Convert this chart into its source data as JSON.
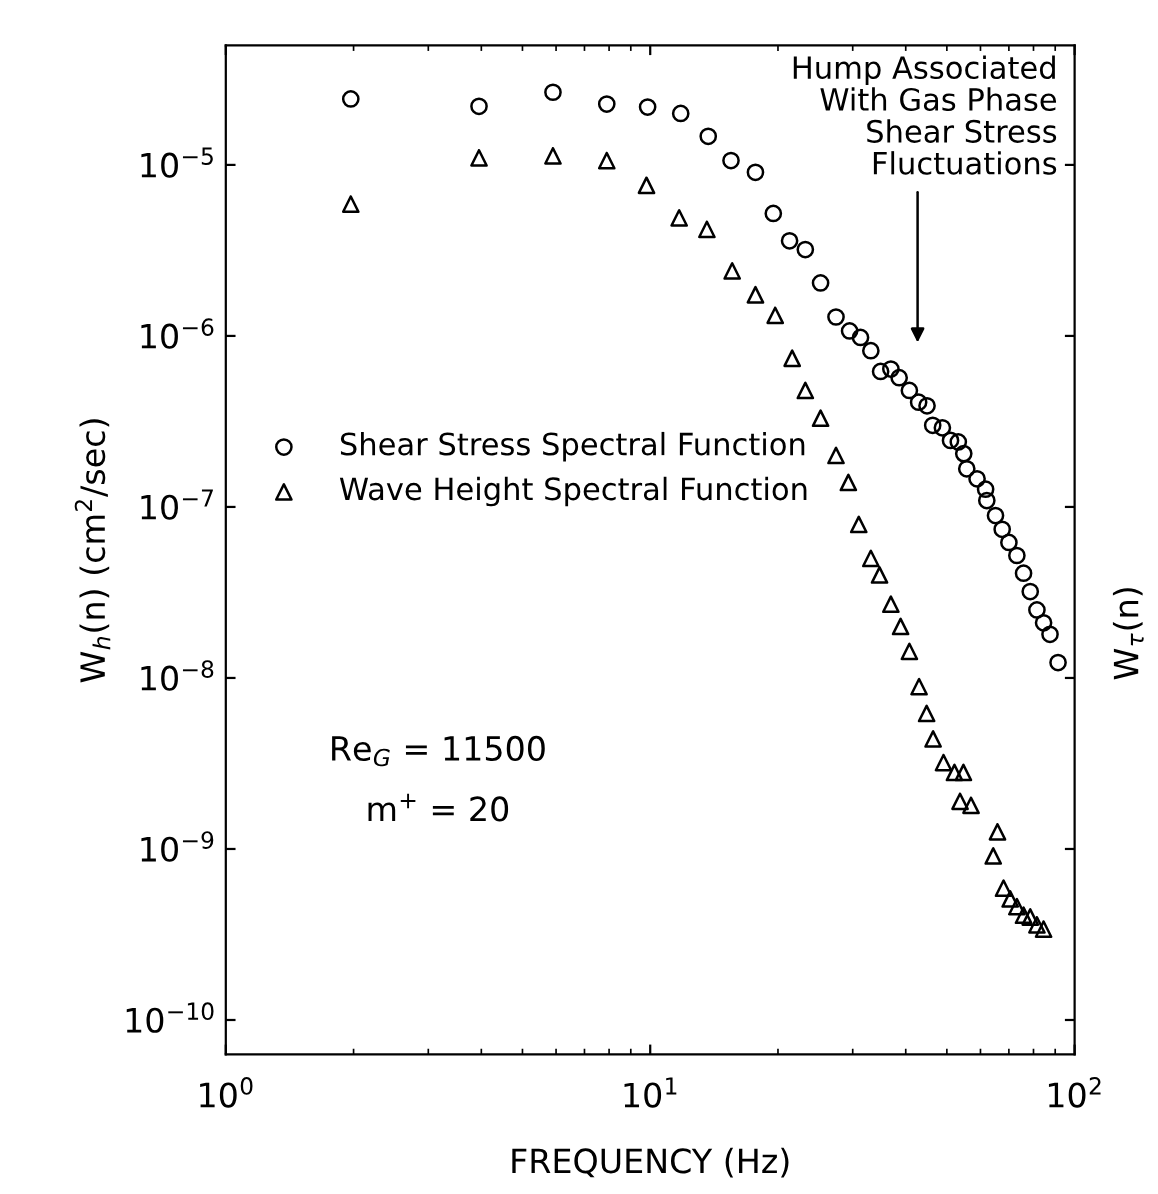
{
  "chart_data": {
    "type": "scatter",
    "xlabel": "FREQUENCY (Hz)",
    "ylabel": "W$_{h}$(n) (cm$^{2}$/sec)",
    "y2label": "W$_{τ}$(n)",
    "log": "xy",
    "xlim": [
      1,
      100
    ],
    "ylim": [
      6.3e-11,
      5e-05
    ],
    "xticks": [
      {
        "value": 1,
        "label": "10$^{0}$"
      },
      {
        "value": 10,
        "label": "10$^{1}$"
      },
      {
        "value": 100,
        "label": "10$^{2}$"
      }
    ],
    "yticks": [
      {
        "value": 1e-10,
        "label": "10$^{−10}$"
      },
      {
        "value": 1e-09,
        "label": "10$^{−9}$"
      },
      {
        "value": 1e-08,
        "label": "10$^{−8}$"
      },
      {
        "value": 1e-07,
        "label": "10$^{−7}$"
      },
      {
        "value": 1e-06,
        "label": "10$^{−6}$"
      },
      {
        "value": 1e-05,
        "label": "10$^{−5}$"
      }
    ],
    "grid": false,
    "legend": "left",
    "series": [
      {
        "name": "Shear Stress Spectral Function",
        "color": "#000000",
        "marker": "circle",
        "x": [
          1.97,
          3.95,
          5.9,
          7.9,
          9.86,
          11.8,
          13.7,
          15.5,
          17.7,
          19.5,
          21.3,
          23.2,
          25.2,
          27.4,
          29.5,
          31.3,
          33.1,
          34.9,
          36.9,
          38.6,
          40.8,
          42.9,
          44.9,
          46.3,
          48.8,
          51.0,
          53.2,
          54.8,
          55.7,
          58.9,
          61.7,
          62.1,
          65.1,
          67.5,
          70.0,
          73.1,
          75.8,
          78.6,
          81.5,
          84.5,
          87.5,
          91.4
        ],
        "values": [
          2.43e-05,
          2.2e-05,
          2.66e-05,
          2.27e-05,
          2.18e-05,
          2e-05,
          1.47e-05,
          1.06e-05,
          9.05e-06,
          5.2e-06,
          3.6e-06,
          3.2e-06,
          2.04e-06,
          1.29e-06,
          1.07e-06,
          9.8e-07,
          8.2e-07,
          6.2e-07,
          6.4e-07,
          5.7e-07,
          4.8e-07,
          4.1e-07,
          3.9e-07,
          3e-07,
          2.9e-07,
          2.45e-07,
          2.4e-07,
          2.05e-07,
          1.67e-07,
          1.46e-07,
          1.27e-07,
          1.09e-07,
          8.9e-08,
          7.4e-08,
          6.2e-08,
          5.2e-08,
          4.1e-08,
          3.2e-08,
          2.5e-08,
          2.1e-08,
          1.8e-08,
          1.23e-08
        ]
      },
      {
        "name": "Wave Height Spectral Function",
        "color": "#000000",
        "marker": "triangle",
        "x": [
          1.97,
          3.95,
          5.9,
          7.9,
          9.8,
          11.7,
          13.6,
          15.6,
          17.7,
          19.7,
          21.6,
          23.2,
          25.2,
          27.4,
          29.3,
          31.0,
          33.1,
          34.7,
          36.9,
          38.9,
          40.8,
          43.0,
          44.8,
          46.4,
          49.1,
          52.1,
          54.7,
          53.7,
          57.0,
          65.8,
          64.3,
          68.0,
          70.5,
          73.1,
          75.8,
          78.6,
          81.5,
          84.5
        ],
        "values": [
          5.9e-06,
          1.1e-05,
          1.13e-05,
          1.06e-05,
          7.6e-06,
          4.9e-06,
          4.2e-06,
          2.4e-06,
          1.74e-06,
          1.32e-06,
          7.4e-07,
          4.8e-07,
          3.3e-07,
          2e-07,
          1.39e-07,
          7.9e-08,
          5e-08,
          4e-08,
          2.7e-08,
          2e-08,
          1.43e-08,
          8.9e-09,
          6.2e-09,
          4.4e-09,
          3.2e-09,
          2.8e-09,
          2.8e-09,
          1.9e-09,
          1.8e-09,
          1.26e-09,
          9.1e-10,
          5.9e-10,
          5.1e-10,
          4.6e-10,
          4.1e-10,
          4e-10,
          3.6e-10,
          3.4e-10
        ]
      }
    ],
    "annotations": [
      "Hump Associated\nWith Gas Phase\nShear Stress\nFluctuations",
      "Re$_{G}$ = 11500",
      "m$^{+}$ = 20"
    ]
  }
}
